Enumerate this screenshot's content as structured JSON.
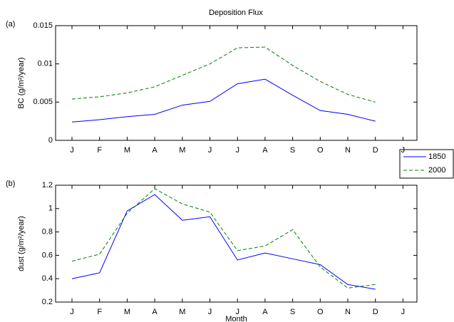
{
  "chart_data": [
    {
      "type": "line",
      "title": "Deposition Flux",
      "panel_label": "(a)",
      "y_label": "BC (g/m²/year)",
      "categories": [
        "J",
        "F",
        "M",
        "A",
        "M",
        "J",
        "J",
        "A",
        "S",
        "O",
        "N",
        "D",
        "J"
      ],
      "series": [
        {
          "name": "1850",
          "color": "#0000ff",
          "linestyle": "solid",
          "values": [
            0.0024,
            0.0027,
            0.0031,
            0.0034,
            0.0046,
            0.0051,
            0.0074,
            0.008,
            0.0059,
            0.0039,
            0.0034,
            0.0025,
            null
          ]
        },
        {
          "name": "2000",
          "color": "#008000",
          "linestyle": "dashed",
          "values": [
            0.0054,
            0.0057,
            0.0062,
            0.007,
            0.0085,
            0.01,
            0.0121,
            0.0122,
            0.0098,
            0.0077,
            0.006,
            0.005,
            null
          ]
        }
      ],
      "ylim": [
        0,
        0.015
      ],
      "yticks": [
        0,
        0.005,
        0.01,
        0.015
      ]
    },
    {
      "type": "line",
      "panel_label": "(b)",
      "y_label": "dust (g/m²/year)",
      "x_label": "Month",
      "categories": [
        "J",
        "F",
        "M",
        "A",
        "M",
        "J",
        "J",
        "A",
        "S",
        "O",
        "N",
        "D",
        "J"
      ],
      "series": [
        {
          "name": "1850",
          "color": "#0000ff",
          "linestyle": "solid",
          "values": [
            0.4,
            0.45,
            0.98,
            1.12,
            0.9,
            0.93,
            0.56,
            0.62,
            0.57,
            0.52,
            0.35,
            0.31,
            null
          ]
        },
        {
          "name": "2000",
          "color": "#008000",
          "linestyle": "dashed",
          "values": [
            0.55,
            0.61,
            0.96,
            1.17,
            1.04,
            0.97,
            0.64,
            0.68,
            0.82,
            0.5,
            0.32,
            0.35,
            null
          ]
        }
      ],
      "ylim": [
        0.2,
        1.2
      ],
      "yticks": [
        0.2,
        0.4,
        0.6,
        0.8,
        1,
        1.2
      ]
    }
  ]
}
